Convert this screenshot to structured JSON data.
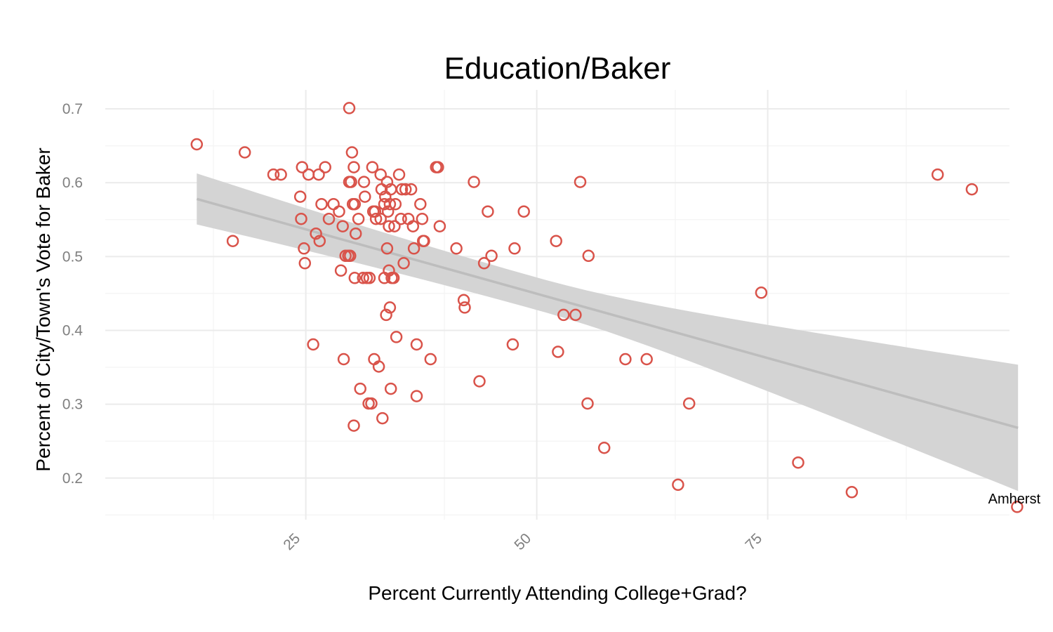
{
  "chart_data": {
    "type": "scatter",
    "title": "Education/Baker",
    "xlabel": "Percent Currently Attending College+Grad?",
    "ylabel": "Percent of City/Town's Vote for Baker",
    "xlim": [
      12.3,
      99.8
    ],
    "ylim": [
      0.15,
      0.705
    ],
    "x_ticks": [
      25,
      50,
      75
    ],
    "x_tick_labels": [
      "25",
      "50",
      "75"
    ],
    "y_ticks": [
      0.2,
      0.3,
      0.4,
      0.5,
      0.6,
      0.7
    ],
    "y_tick_labels": [
      "0.2",
      "0.3",
      "0.4",
      "0.5",
      "0.6",
      "0.7"
    ],
    "grid": true,
    "point_color": "#d9534a",
    "trend": {
      "method": "linear",
      "color": "#bdbdbd",
      "band_color": "#d4d4d4",
      "x": [
        13.2,
        102.1
      ],
      "y": [
        0.578,
        0.268
      ],
      "band_upper": [
        0.613,
        0.354
      ],
      "band_lower": [
        0.544,
        0.183
      ]
    },
    "annotations": [
      {
        "label": "Amherst",
        "x": 102.0,
        "y": 0.172
      }
    ],
    "points": [
      [
        13.2,
        0.652
      ],
      [
        18.4,
        0.641
      ],
      [
        17.1,
        0.521
      ],
      [
        22.3,
        0.611
      ],
      [
        21.5,
        0.611
      ],
      [
        24.6,
        0.621
      ],
      [
        25.3,
        0.611
      ],
      [
        26.4,
        0.611
      ],
      [
        27.1,
        0.621
      ],
      [
        24.4,
        0.581
      ],
      [
        24.5,
        0.551
      ],
      [
        24.8,
        0.511
      ],
      [
        24.9,
        0.491
      ],
      [
        25.8,
        0.381
      ],
      [
        26.1,
        0.531
      ],
      [
        26.5,
        0.521
      ],
      [
        26.7,
        0.571
      ],
      [
        27.5,
        0.551
      ],
      [
        28.0,
        0.571
      ],
      [
        28.6,
        0.561
      ],
      [
        28.8,
        0.481
      ],
      [
        29.0,
        0.541
      ],
      [
        29.3,
        0.501
      ],
      [
        29.6,
        0.501
      ],
      [
        29.8,
        0.501
      ],
      [
        29.1,
        0.361
      ],
      [
        29.7,
        0.701
      ],
      [
        29.7,
        0.601
      ],
      [
        29.9,
        0.601
      ],
      [
        30.0,
        0.641
      ],
      [
        30.2,
        0.621
      ],
      [
        30.3,
        0.571
      ],
      [
        30.1,
        0.571
      ],
      [
        30.4,
        0.531
      ],
      [
        30.3,
        0.471
      ],
      [
        30.2,
        0.271
      ],
      [
        30.7,
        0.551
      ],
      [
        30.9,
        0.321
      ],
      [
        31.3,
        0.601
      ],
      [
        31.4,
        0.581
      ],
      [
        31.2,
        0.471
      ],
      [
        31.6,
        0.471
      ],
      [
        31.9,
        0.471
      ],
      [
        31.8,
        0.301
      ],
      [
        32.1,
        0.301
      ],
      [
        32.2,
        0.621
      ],
      [
        32.3,
        0.561
      ],
      [
        32.5,
        0.561
      ],
      [
        32.6,
        0.551
      ],
      [
        32.4,
        0.361
      ],
      [
        32.9,
        0.351
      ],
      [
        33.1,
        0.551
      ],
      [
        33.1,
        0.611
      ],
      [
        33.2,
        0.591
      ],
      [
        33.5,
        0.571
      ],
      [
        33.6,
        0.581
      ],
      [
        33.5,
        0.471
      ],
      [
        33.3,
        0.281
      ],
      [
        33.8,
        0.601
      ],
      [
        33.9,
        0.561
      ],
      [
        33.8,
        0.511
      ],
      [
        34.0,
        0.541
      ],
      [
        34.1,
        0.571
      ],
      [
        34.2,
        0.591
      ],
      [
        34.0,
        0.481
      ],
      [
        34.1,
        0.431
      ],
      [
        34.2,
        0.321
      ],
      [
        34.3,
        0.471
      ],
      [
        34.6,
        0.541
      ],
      [
        34.5,
        0.471
      ],
      [
        34.7,
        0.571
      ],
      [
        34.8,
        0.391
      ],
      [
        35.1,
        0.611
      ],
      [
        35.3,
        0.551
      ],
      [
        35.4,
        0.591
      ],
      [
        35.6,
        0.491
      ],
      [
        35.8,
        0.591
      ],
      [
        36.1,
        0.551
      ],
      [
        33.7,
        0.421
      ],
      [
        36.4,
        0.591
      ],
      [
        36.6,
        0.541
      ],
      [
        36.7,
        0.511
      ],
      [
        37.0,
        0.381
      ],
      [
        37.0,
        0.311
      ],
      [
        37.4,
        0.571
      ],
      [
        37.6,
        0.551
      ],
      [
        37.7,
        0.521
      ],
      [
        37.8,
        0.521
      ],
      [
        38.5,
        0.361
      ],
      [
        39.1,
        0.621
      ],
      [
        39.3,
        0.621
      ],
      [
        39.5,
        0.541
      ],
      [
        41.3,
        0.511
      ],
      [
        42.1,
        0.441
      ],
      [
        42.2,
        0.431
      ],
      [
        43.2,
        0.601
      ],
      [
        43.8,
        0.331
      ],
      [
        44.3,
        0.491
      ],
      [
        45.1,
        0.501
      ],
      [
        44.7,
        0.561
      ],
      [
        47.6,
        0.511
      ],
      [
        47.4,
        0.381
      ],
      [
        48.6,
        0.561
      ],
      [
        52.1,
        0.521
      ],
      [
        52.3,
        0.371
      ],
      [
        52.9,
        0.421
      ],
      [
        54.2,
        0.421
      ],
      [
        54.7,
        0.601
      ],
      [
        55.6,
        0.501
      ],
      [
        55.5,
        0.301
      ],
      [
        57.3,
        0.241
      ],
      [
        59.6,
        0.361
      ],
      [
        61.9,
        0.361
      ],
      [
        65.3,
        0.191
      ],
      [
        66.5,
        0.301
      ],
      [
        74.3,
        0.451
      ],
      [
        78.3,
        0.221
      ],
      [
        84.1,
        0.181
      ],
      [
        93.4,
        0.611
      ],
      [
        97.1,
        0.591
      ],
      [
        102.0,
        0.161
      ]
    ]
  }
}
